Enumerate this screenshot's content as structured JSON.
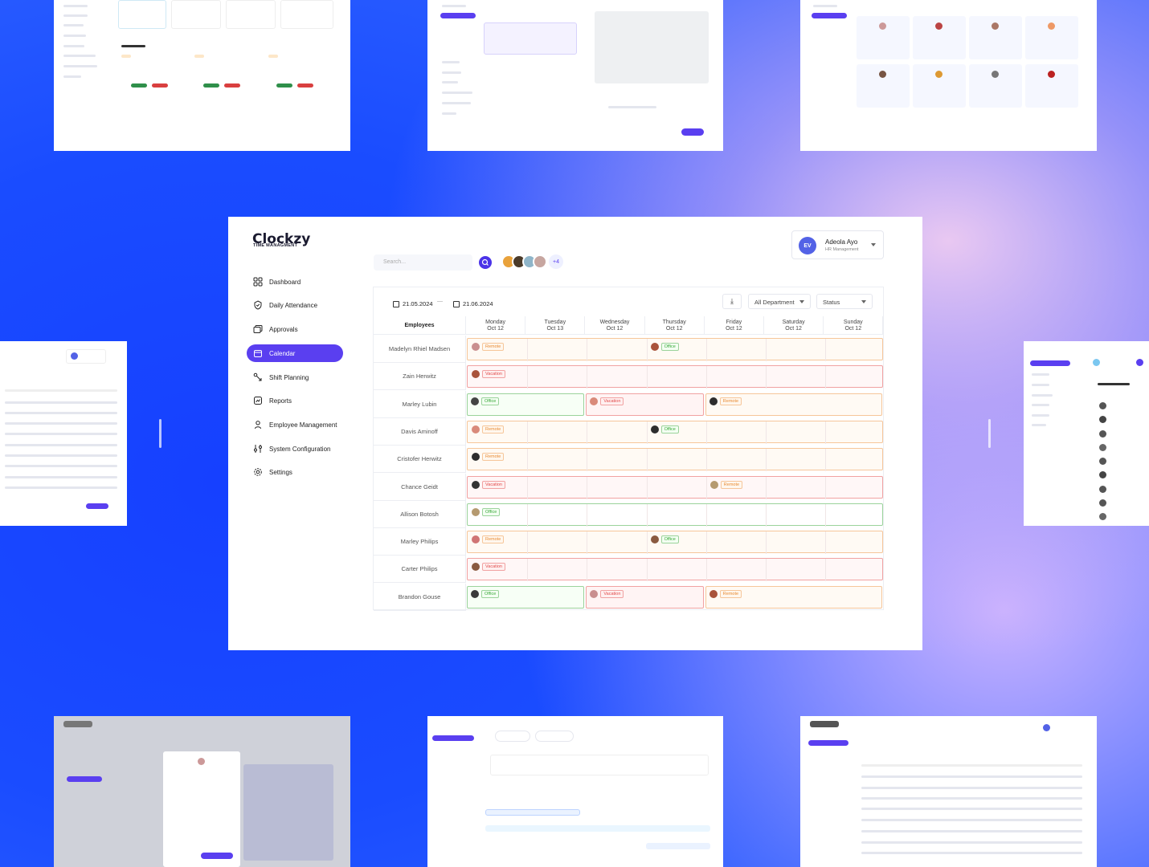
{
  "app": {
    "logo": "Clockzy",
    "logo_sub": "TIME MANAGMENT"
  },
  "sidebar": {
    "items": [
      {
        "label": "Dashboard",
        "icon": "grid-icon"
      },
      {
        "label": "Daily Attendance",
        "icon": "shield-check-icon"
      },
      {
        "label": "Approvals",
        "icon": "approvals-icon"
      },
      {
        "label": "Calendar",
        "icon": "calendar-icon",
        "active": true
      },
      {
        "label": "Shift Planning",
        "icon": "shift-icon"
      },
      {
        "label": "Reports",
        "icon": "reports-icon"
      },
      {
        "label": "Employee Management",
        "icon": "user-icon"
      },
      {
        "label": "System Configuration",
        "icon": "sliders-icon"
      },
      {
        "label": "Settings",
        "icon": "gear-icon"
      }
    ]
  },
  "search": {
    "placeholder": "Search..."
  },
  "team": {
    "more": "+4"
  },
  "user": {
    "initials": "EV",
    "name": "Adeola Ayo",
    "role": "HR Management"
  },
  "toolbar": {
    "date_from": "21.05.2024",
    "separator": "—",
    "date_to": "21.06.2024",
    "department": "All Department",
    "status": "Status"
  },
  "calendar": {
    "employees_header": "Employees",
    "days": [
      {
        "day": "Monday",
        "date": "Oct 12"
      },
      {
        "day": "Tuesday",
        "date": "Oct 13"
      },
      {
        "day": "Wednesday",
        "date": "Oct 12"
      },
      {
        "day": "Thursday",
        "date": "Oct 12"
      },
      {
        "day": "Friday",
        "date": "Oct 12"
      },
      {
        "day": "Saturday",
        "date": "Oct 12"
      },
      {
        "day": "Sunday",
        "date": "Oct 12"
      }
    ],
    "rows": [
      {
        "name": "Madelyn Rhiel Madsen",
        "style": "orange",
        "tags": [
          {
            "day": 0,
            "label": "Remote",
            "type": "remote"
          },
          {
            "day": 3,
            "label": "Office",
            "type": "office"
          }
        ]
      },
      {
        "name": "Zain Herwitz",
        "style": "red",
        "tags": [
          {
            "day": 0,
            "label": "Vacation",
            "type": "vacation"
          }
        ]
      },
      {
        "name": "Marley Lubin",
        "style": "mixed",
        "tags": [
          {
            "day": 0,
            "label": "Office",
            "type": "office"
          },
          {
            "day": 2,
            "label": "Vacation",
            "type": "vacation"
          },
          {
            "day": 4,
            "label": "Remote",
            "type": "remote"
          }
        ]
      },
      {
        "name": "Davis Aminoff",
        "style": "orange",
        "tags": [
          {
            "day": 0,
            "label": "Remote",
            "type": "remote"
          },
          {
            "day": 3,
            "label": "Office",
            "type": "office"
          }
        ]
      },
      {
        "name": "Cristofer Herwitz",
        "style": "orange",
        "tags": [
          {
            "day": 0,
            "label": "Remote",
            "type": "remote"
          }
        ]
      },
      {
        "name": "Chance Geidt",
        "style": "red",
        "tags": [
          {
            "day": 0,
            "label": "Vacation",
            "type": "vacation"
          },
          {
            "day": 4,
            "label": "Remote",
            "type": "remote"
          }
        ]
      },
      {
        "name": "Allison Botosh",
        "style": "green",
        "tags": [
          {
            "day": 0,
            "label": "Office",
            "type": "office"
          }
        ]
      },
      {
        "name": "Marley Philips",
        "style": "orange",
        "tags": [
          {
            "day": 0,
            "label": "Remote",
            "type": "remote"
          },
          {
            "day": 3,
            "label": "Office",
            "type": "office"
          }
        ]
      },
      {
        "name": "Carter Philips",
        "style": "red",
        "tags": [
          {
            "day": 0,
            "label": "Vacation",
            "type": "vacation"
          }
        ]
      },
      {
        "name": "Brandon Gouse",
        "style": "mixed",
        "tags": [
          {
            "day": 0,
            "label": "Office",
            "type": "office"
          },
          {
            "day": 2,
            "label": "Vacation",
            "type": "vacation"
          },
          {
            "day": 4,
            "label": "Remote",
            "type": "remote"
          }
        ]
      }
    ]
  },
  "colors": {
    "accent": "#5a3ff0",
    "office": "#3aa83a",
    "vacation": "#e24c4c",
    "remote": "#e88b34"
  }
}
